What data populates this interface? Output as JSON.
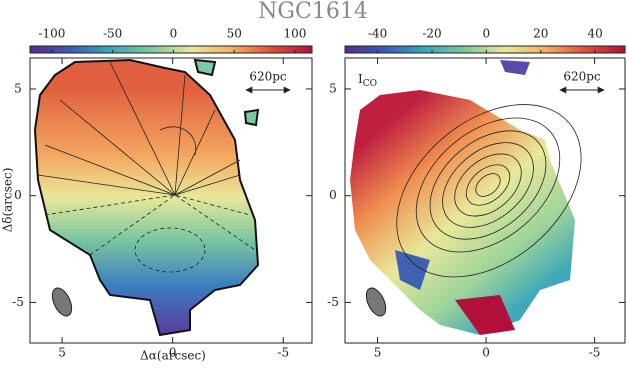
{
  "chart_data": [
    {
      "type": "map",
      "title": "NGC1614",
      "xlabel": "Δα(arcsec)",
      "ylabel": "Δδ(arcsec)",
      "xlim": [
        6.45,
        -6.3
      ],
      "ylim": [
        -6.9,
        6.45
      ],
      "xticks": [
        5,
        0,
        -5
      ],
      "yticks": [
        -5,
        0,
        5
      ],
      "clim": [
        -118,
        114
      ],
      "cticks": [
        -100,
        -50,
        0,
        50,
        100
      ],
      "scale_bar": "620pc",
      "colormap": [
        "#5a2a8a",
        "#3b5bb8",
        "#3aa8b8",
        "#7cc89a",
        "#e8e89a",
        "#f4b060",
        "#e0503a",
        "#b0103a"
      ]
    },
    {
      "type": "map",
      "xlim": [
        6.5,
        -6.4
      ],
      "ylim": [
        -6.9,
        6.45
      ],
      "xticks": [
        5,
        0,
        -5
      ],
      "yticks": [
        -5,
        0,
        5
      ],
      "clim": [
        -52,
        51
      ],
      "cticks": [
        -40,
        -20,
        0,
        20,
        40
      ],
      "scale_bar": "620pc",
      "label": "I",
      "label_sub": "CO",
      "colormap": [
        "#5a2a8a",
        "#3b5bb8",
        "#3aa8b8",
        "#7cc89a",
        "#e8e89a",
        "#f4b060",
        "#e0503a",
        "#b0103a"
      ]
    }
  ]
}
